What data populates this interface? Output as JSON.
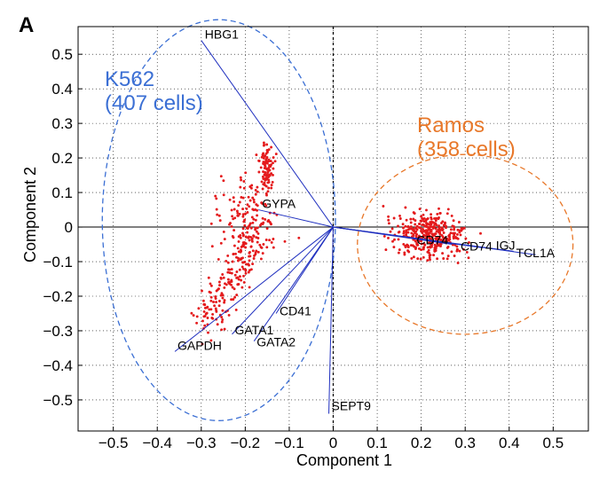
{
  "panel_label": "A",
  "chart_data": {
    "type": "scatter",
    "xlabel": "Component 1",
    "ylabel": "Component 2",
    "xlim": [
      -0.58,
      0.58
    ],
    "ylim": [
      -0.59,
      0.58
    ],
    "xticks": [
      -0.5,
      -0.4,
      -0.3,
      -0.2,
      -0.1,
      0,
      0.1,
      0.2,
      0.3,
      0.4,
      0.5
    ],
    "xtick_labels": [
      "−0.5",
      "−0.4",
      "−0.3",
      "−0.2",
      "−0.1",
      "0",
      "0.1",
      "0.2",
      "0.3",
      "0.4",
      "0.5"
    ],
    "yticks": [
      0.5,
      0.4,
      0.3,
      0.2,
      0.1,
      0,
      -0.1,
      -0.2,
      -0.3,
      -0.4,
      -0.5
    ],
    "ytick_labels": [
      "0.5",
      "0.4",
      "0.3",
      "0.2",
      "0.1",
      "0",
      "−0.1",
      "−0.2",
      "−0.3",
      "−0.4",
      "−0.5"
    ],
    "grid": true,
    "point_color": "#e41a1c",
    "vector_color": "#1f2fbf",
    "loadings": [
      {
        "label": "HBG1",
        "x": -0.3,
        "y": 0.54
      },
      {
        "label": "GYPA",
        "x": -0.17,
        "y": 0.05
      },
      {
        "label": "CD41",
        "x": -0.13,
        "y": -0.25
      },
      {
        "label": "GATA1",
        "x": -0.23,
        "y": -0.31
      },
      {
        "label": "GATA2",
        "x": -0.18,
        "y": -0.33
      },
      {
        "label": "GAPDH",
        "x": -0.36,
        "y": -0.36
      },
      {
        "label": "SEPT9",
        "x": -0.01,
        "y": -0.54
      },
      {
        "label": "CD74",
        "x": 0.27,
        "y": -0.05
      },
      {
        "label": "CD74",
        "x": 0.34,
        "y": -0.06
      },
      {
        "label": "IGJ",
        "x": 0.41,
        "y": -0.07
      },
      {
        "label": "TCL1A",
        "x": 0.46,
        "y": -0.08
      }
    ],
    "clusters": [
      {
        "name": "K562",
        "label_line1": "K562",
        "label_line2": "(407 cells)",
        "color": "#3b6fd4",
        "count": 407,
        "ellipse": {
          "cx": -0.26,
          "cy": 0.02,
          "rx": 0.265,
          "ry": 0.58
        }
      },
      {
        "name": "Ramos",
        "label_line1": "Ramos",
        "label_line2": "(358 cells)",
        "color": "#e8782a",
        "count": 358,
        "ellipse": {
          "cx": 0.3,
          "cy": -0.05,
          "rx": 0.245,
          "ry": 0.26
        }
      }
    ]
  }
}
